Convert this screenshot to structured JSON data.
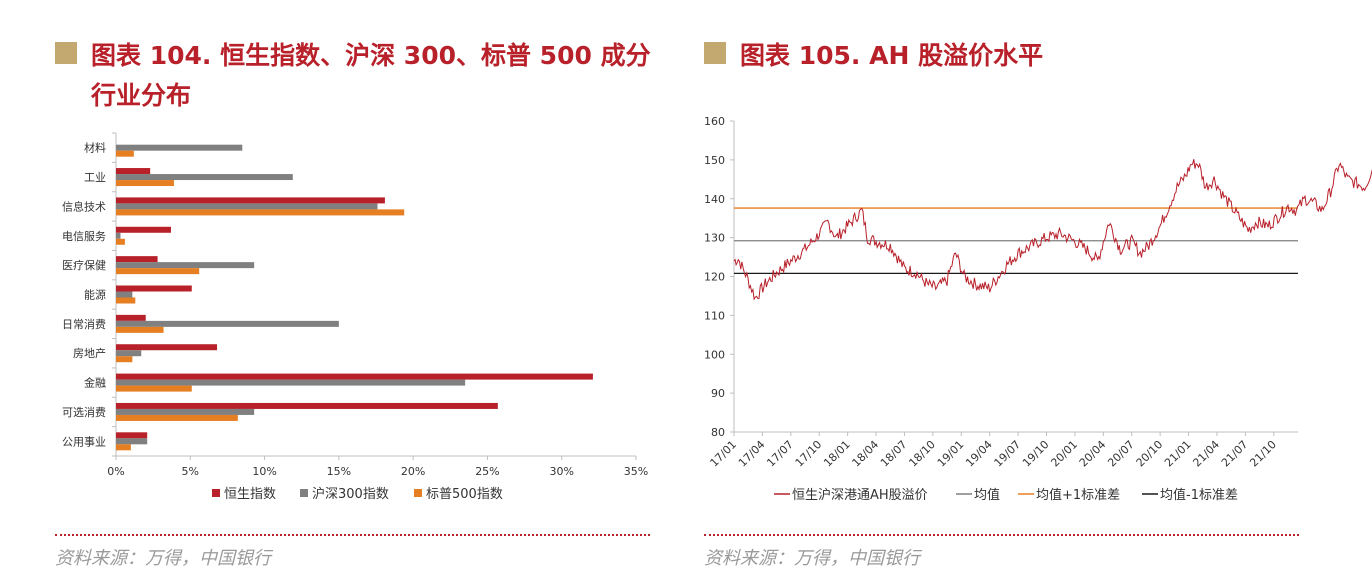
{
  "left": {
    "title": "图表 104. 恒生指数、沪深 300、标普 500 成分行业分布",
    "source": "资料来源：万得，中国银行"
  },
  "right": {
    "title": "图表 105. AH 股溢价水平",
    "source": "资料来源：万得，中国银行"
  },
  "colors": {
    "title": "#b8202a",
    "accent_square": "#c3a96f",
    "hs": "#b8202a",
    "csi": "#808080",
    "sp": "#e67e22",
    "avg": "#7f7f7f",
    "plus": "#e67e22",
    "minus": "#1a1a1a"
  },
  "chart_data": [
    {
      "type": "bar",
      "orientation": "horizontal",
      "categories": [
        "材料",
        "工业",
        "信息技术",
        "电信服务",
        "医疗保健",
        "能源",
        "日常消费",
        "房地产",
        "金融",
        "可选消费",
        "公用事业"
      ],
      "series": [
        {
          "name": "恒生指数",
          "values": [
            0.0,
            2.3,
            18.1,
            3.7,
            2.8,
            5.1,
            2.0,
            6.8,
            32.1,
            25.7,
            2.1
          ]
        },
        {
          "name": "沪深300指数",
          "values": [
            8.5,
            11.9,
            17.6,
            0.3,
            9.3,
            1.1,
            15.0,
            1.7,
            23.5,
            9.3,
            2.1
          ]
        },
        {
          "name": "标普500指数",
          "values": [
            1.2,
            3.9,
            19.4,
            0.6,
            5.6,
            1.3,
            3.2,
            1.1,
            5.1,
            8.2,
            1.0
          ]
        }
      ],
      "xlim": [
        0,
        35
      ],
      "xticks": [
        "0%",
        "5%",
        "10%",
        "15%",
        "20%",
        "25%",
        "30%",
        "35%"
      ],
      "legend_position": "bottom"
    },
    {
      "type": "line",
      "ylim": [
        80,
        160
      ],
      "yticks": [
        "160",
        "150",
        "140",
        "130",
        "120",
        "110",
        "100",
        "90",
        "80"
      ],
      "xticks": [
        "17/01",
        "17/04",
        "17/07",
        "17/10",
        "18/01",
        "18/04",
        "18/07",
        "18/10",
        "19/01",
        "19/04",
        "19/07",
        "19/10",
        "20/01",
        "20/04",
        "20/07",
        "20/10",
        "21/01",
        "21/04",
        "21/07",
        "21/10"
      ],
      "series_name": "恒生沪深港通AH股溢价",
      "anchors": [
        [
          0,
          124
        ],
        [
          0.15,
          124.5
        ],
        [
          0.45,
          120
        ],
        [
          0.75,
          114.5
        ],
        [
          1.1,
          118
        ],
        [
          1.5,
          121
        ],
        [
          2.0,
          124
        ],
        [
          2.5,
          127
        ],
        [
          3.0,
          131
        ],
        [
          3.3,
          134
        ],
        [
          3.6,
          130
        ],
        [
          4.0,
          133
        ],
        [
          4.5,
          137
        ],
        [
          4.7,
          130
        ],
        [
          5.0,
          129
        ],
        [
          5.5,
          128
        ],
        [
          6.0,
          122
        ],
        [
          6.4,
          121
        ],
        [
          6.8,
          118
        ],
        [
          7.1,
          117
        ],
        [
          7.5,
          119
        ],
        [
          7.8,
          126
        ],
        [
          8.1,
          120
        ],
        [
          8.5,
          118
        ],
        [
          9.0,
          117
        ],
        [
          9.3,
          120
        ],
        [
          9.6,
          123
        ],
        [
          10.0,
          126
        ],
        [
          10.5,
          128
        ],
        [
          11.0,
          130
        ],
        [
          11.5,
          131
        ],
        [
          12.0,
          129
        ],
        [
          12.4,
          127
        ],
        [
          12.8,
          124
        ],
        [
          13.2,
          134
        ],
        [
          13.6,
          127
        ],
        [
          14.0,
          129
        ],
        [
          14.3,
          126
        ],
        [
          14.6,
          128
        ],
        [
          15.0,
          133
        ],
        [
          15.3,
          138
        ],
        [
          15.6,
          143
        ],
        [
          15.9,
          146
        ],
        [
          16.1,
          149
        ],
        [
          16.35,
          149
        ],
        [
          16.6,
          143
        ],
        [
          16.9,
          145
        ],
        [
          17.2,
          141
        ],
        [
          17.5,
          138
        ],
        [
          17.8,
          135
        ],
        [
          18.1,
          132
        ],
        [
          18.4,
          134
        ],
        [
          18.8,
          133
        ],
        [
          19.1,
          135
        ],
        [
          19.5,
          138
        ],
        [
          19.8,
          137
        ],
        [
          20.1,
          140
        ],
        [
          20.4,
          139
        ],
        [
          20.7,
          137
        ],
        [
          21.0,
          142
        ],
        [
          21.3,
          149
        ],
        [
          21.6,
          145
        ],
        [
          21.9,
          144
        ],
        [
          22.2,
          143
        ],
        [
          22.5,
          148
        ]
      ],
      "reference_lines": [
        {
          "name": "均值",
          "value": 129.2
        },
        {
          "name": "均值+1标准差",
          "value": 137.6
        },
        {
          "name": "均值-1标准差",
          "value": 120.8
        }
      ],
      "legend_position": "bottom"
    }
  ]
}
